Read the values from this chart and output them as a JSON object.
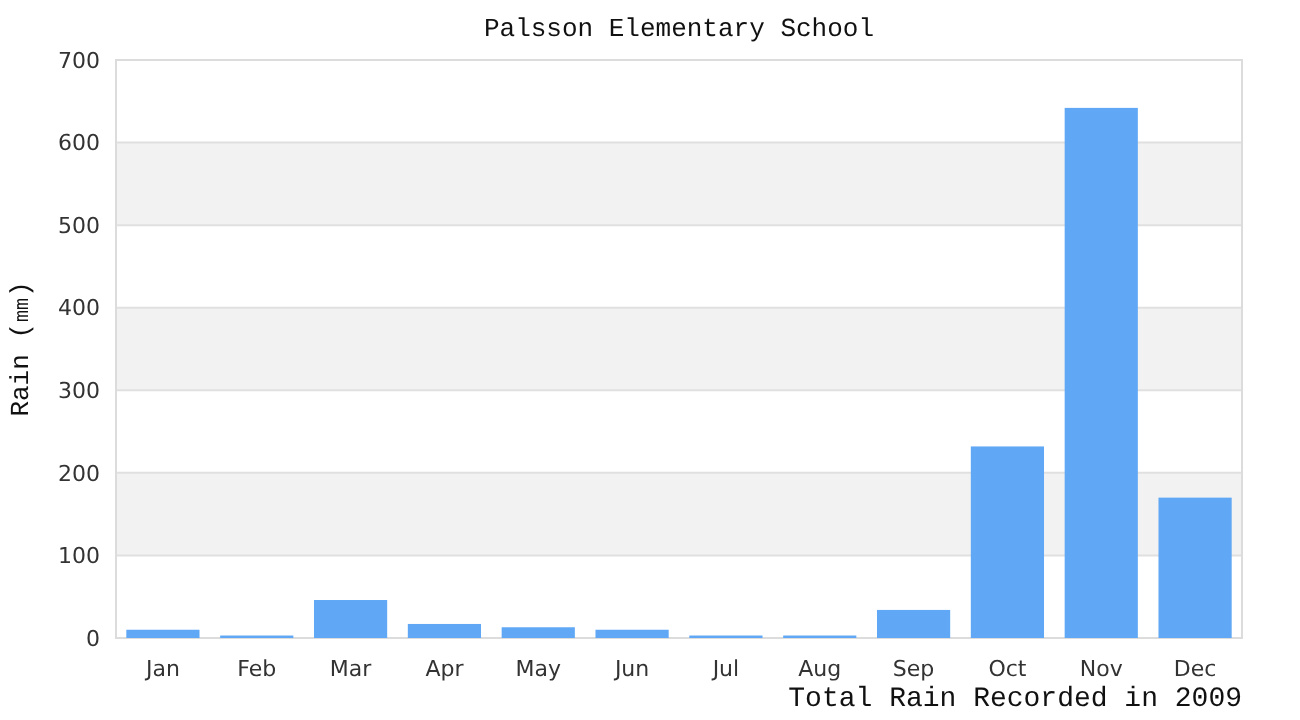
{
  "chart_data": {
    "type": "bar",
    "title": "Palsson Elementary School",
    "xlabel": "Total Rain Recorded in 2009",
    "ylabel": "Rain (㎜)",
    "categories": [
      "Jan",
      "Feb",
      "Mar",
      "Apr",
      "May",
      "Jun",
      "Jul",
      "Aug",
      "Sep",
      "Oct",
      "Nov",
      "Dec"
    ],
    "values": [
      10,
      3,
      46,
      17,
      13,
      10,
      3,
      3,
      34,
      232,
      642,
      170
    ],
    "color": "#60a8f5",
    "ylim": [
      0,
      700
    ],
    "yticks": [
      0,
      100,
      200,
      300,
      400,
      500,
      600,
      700
    ],
    "grid": "y"
  }
}
